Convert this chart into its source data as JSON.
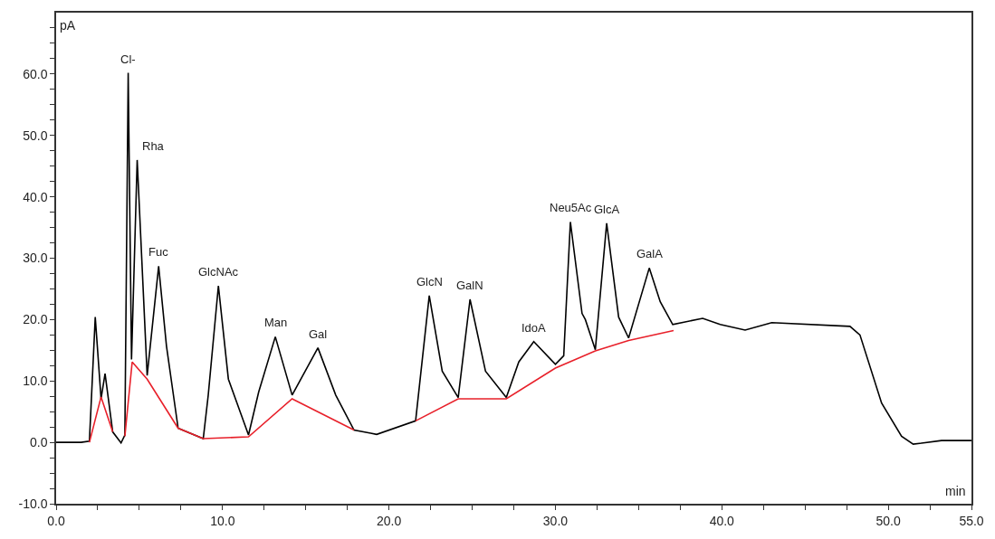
{
  "chart_data": {
    "type": "line",
    "xlabel": "min",
    "ylabel": "pA",
    "xlim": [
      0,
      55
    ],
    "ylim": [
      -10,
      70
    ],
    "xticks": [
      {
        "value": 0,
        "label": "0.0"
      },
      {
        "value": 2.5,
        "label": null
      },
      {
        "value": 5,
        "label": null
      },
      {
        "value": 7.5,
        "label": null
      },
      {
        "value": 10,
        "label": "10.0"
      },
      {
        "value": 12.5,
        "label": null
      },
      {
        "value": 15,
        "label": null
      },
      {
        "value": 17.5,
        "label": null
      },
      {
        "value": 20,
        "label": "20.0"
      },
      {
        "value": 22.5,
        "label": null
      },
      {
        "value": 25,
        "label": null
      },
      {
        "value": 27.5,
        "label": null
      },
      {
        "value": 30,
        "label": "30.0"
      },
      {
        "value": 32.5,
        "label": null
      },
      {
        "value": 35,
        "label": null
      },
      {
        "value": 37.5,
        "label": null
      },
      {
        "value": 40,
        "label": "40.0"
      },
      {
        "value": 42.5,
        "label": null
      },
      {
        "value": 45,
        "label": null
      },
      {
        "value": 47.5,
        "label": null
      },
      {
        "value": 50,
        "label": "50.0"
      },
      {
        "value": 52.5,
        "label": null
      },
      {
        "value": 55,
        "label": "55.0"
      }
    ],
    "yticks": [
      {
        "value": -10,
        "label": "-10.0"
      },
      {
        "value": -7.5,
        "label": null
      },
      {
        "value": -5,
        "label": null
      },
      {
        "value": -2.5,
        "label": null
      },
      {
        "value": 0,
        "label": "0.0"
      },
      {
        "value": 2.5,
        "label": null
      },
      {
        "value": 5,
        "label": null
      },
      {
        "value": 7.5,
        "label": null
      },
      {
        "value": 10,
        "label": "10.0"
      },
      {
        "value": 12.5,
        "label": null
      },
      {
        "value": 15,
        "label": null
      },
      {
        "value": 17.5,
        "label": null
      },
      {
        "value": 20,
        "label": "20.0"
      },
      {
        "value": 22.5,
        "label": null
      },
      {
        "value": 25,
        "label": null
      },
      {
        "value": 27.5,
        "label": null
      },
      {
        "value": 30,
        "label": "30.0"
      },
      {
        "value": 32.5,
        "label": null
      },
      {
        "value": 35,
        "label": null
      },
      {
        "value": 37.5,
        "label": null
      },
      {
        "value": 40,
        "label": "40.0"
      },
      {
        "value": 42.5,
        "label": null
      },
      {
        "value": 45,
        "label": null
      },
      {
        "value": 47.5,
        "label": null
      },
      {
        "value": 50,
        "label": "50.0"
      },
      {
        "value": 52.5,
        "label": null
      },
      {
        "value": 55,
        "label": null
      },
      {
        "value": 57.5,
        "label": null
      },
      {
        "value": 60,
        "label": "60.0"
      },
      {
        "value": 62.5,
        "label": null
      },
      {
        "value": 65,
        "label": null
      },
      {
        "value": 67.5,
        "label": null
      }
    ],
    "series": [
      {
        "color": "#000000",
        "x": [
          0,
          1.5,
          2.0,
          2.35,
          2.7,
          2.94,
          3.4,
          3.9,
          4.13,
          4.33,
          4.53,
          4.87,
          5.47,
          6.16,
          6.63,
          7.33,
          8.84,
          9.14,
          9.75,
          10.35,
          11.56,
          12.17,
          13.17,
          14.18,
          15.73,
          16.8,
          17.9,
          18.9,
          19.26,
          21.6,
          22.42,
          23.2,
          24.16,
          24.87,
          25.8,
          27.05,
          27.8,
          28.7,
          30.0,
          30.5,
          30.9,
          31.6,
          31.8,
          32.4,
          33.08,
          33.8,
          34.4,
          35.64,
          36.3,
          37.05,
          38.85,
          39.9,
          41.4,
          43.0,
          47.7,
          48.3,
          49.6,
          50.8,
          51.5,
          53.2,
          55.0
        ],
        "values": [
          0,
          0,
          0.2,
          20.4,
          7.1,
          11.2,
          1.7,
          -0.1,
          1.2,
          60.2,
          13.5,
          46.0,
          10.9,
          28.7,
          15.7,
          2.3,
          0.6,
          7.7,
          25.5,
          10.3,
          1.2,
          8.2,
          17.2,
          7.7,
          15.4,
          7.7,
          2.0,
          1.5,
          1.3,
          3.5,
          23.9,
          11.6,
          7.3,
          23.3,
          11.6,
          7.3,
          13.1,
          16.4,
          12.7,
          14.1,
          35.9,
          21.0,
          20.0,
          15.1,
          35.7,
          20.4,
          17.0,
          28.4,
          22.9,
          19.2,
          20.2,
          19.2,
          18.3,
          19.5,
          18.9,
          17.5,
          6.4,
          1.0,
          -0.3,
          0.3,
          0.3
        ]
      },
      {
        "color": "#e8202a",
        "x": [
          2.0,
          2.7,
          3.4,
          3.8,
          4.13,
          4.57,
          5.47,
          7.33,
          8.84,
          11.56,
          14.18,
          17.9,
          19.0,
          21.6,
          24.16,
          27.05,
          30.0,
          32.4,
          34.4,
          37.1
        ],
        "values": [
          0,
          7.4,
          1.7,
          null,
          1.0,
          13.1,
          10.3,
          2.3,
          0.6,
          0.9,
          7.1,
          2.0,
          null,
          3.5,
          7.1,
          7.1,
          12.1,
          14.9,
          16.6,
          18.2
        ]
      }
    ],
    "annotations": [
      {
        "text": "Cl-",
        "x": 4.33,
        "y": 60.2
      },
      {
        "text": "Rha",
        "x": 4.87,
        "y": 46.0
      },
      {
        "text": "Fuc",
        "x": 6.16,
        "y": 28.7
      },
      {
        "text": "GlcNAc",
        "x": 9.75,
        "y": 25.5
      },
      {
        "text": "Man",
        "x": 13.17,
        "y": 17.2
      },
      {
        "text": "Gal",
        "x": 15.73,
        "y": 15.4
      },
      {
        "text": "GlcN",
        "x": 22.42,
        "y": 23.9
      },
      {
        "text": "GalN",
        "x": 24.87,
        "y": 23.3
      },
      {
        "text": "IdoA",
        "x": 28.7,
        "y": 16.4
      },
      {
        "text": "Neu5Ac",
        "x": 30.9,
        "y": 35.9
      },
      {
        "text": "GlcA",
        "x": 33.08,
        "y": 35.7
      },
      {
        "text": "GalA",
        "x": 35.64,
        "y": 28.4
      }
    ]
  }
}
